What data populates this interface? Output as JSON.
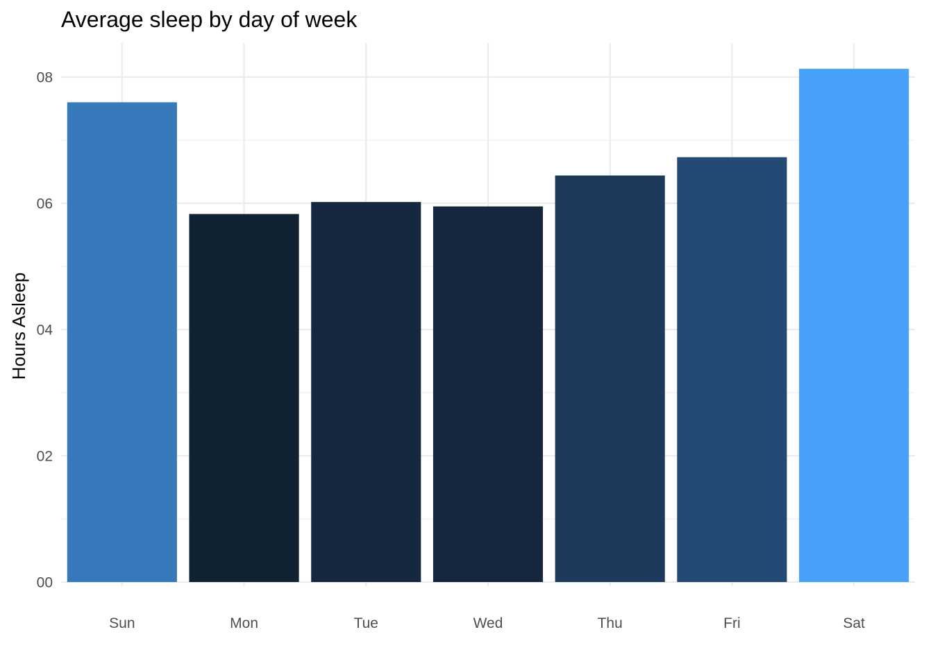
{
  "chart_data": {
    "type": "bar",
    "title": "Average sleep by day of week",
    "xlabel": "",
    "ylabel": "Hours Asleep",
    "categories": [
      "Sun",
      "Mon",
      "Tue",
      "Wed",
      "Thu",
      "Fri",
      "Sat"
    ],
    "values": [
      7.6,
      5.83,
      6.02,
      5.95,
      6.44,
      6.73,
      8.13
    ],
    "bar_colors": [
      "#377ABB",
      "#112233",
      "#15283F",
      "#15263D",
      "#1D395C",
      "#234A73",
      "#48A1F8"
    ],
    "ylim": [
      0,
      8.5
    ],
    "yticks": [
      0,
      2,
      4,
      6,
      8
    ],
    "ytick_labels": [
      "00",
      "02",
      "04",
      "06",
      "08"
    ],
    "grid": true,
    "legend": "none"
  }
}
